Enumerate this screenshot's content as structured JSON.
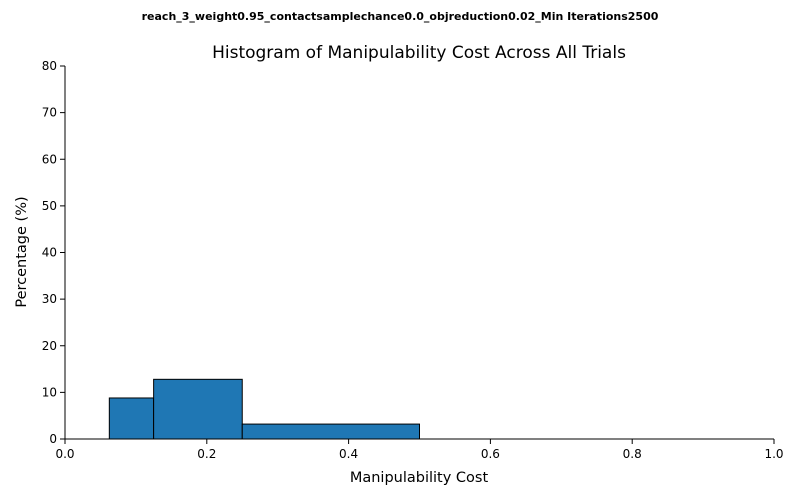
{
  "chart_data": {
    "type": "bar",
    "suptitle": "reach_3_weight0.95_contactsamplechance0.0_objreduction0.02_Min Iterations2500",
    "title": "Histogram of Manipulability Cost Across All Trials",
    "xlabel": "Manipulability Cost",
    "ylabel": "Percentage (%)",
    "xlim": [
      0.0,
      1.0
    ],
    "ylim": [
      0,
      80
    ],
    "xticks": [
      "0.0",
      "0.2",
      "0.4",
      "0.6",
      "0.8",
      "1.0"
    ],
    "yticks": [
      "0",
      "10",
      "20",
      "30",
      "40",
      "50",
      "60",
      "70",
      "80"
    ],
    "bins": [
      {
        "x0": 0.0625,
        "x1": 0.125,
        "value": 8.8
      },
      {
        "x0": 0.125,
        "x1": 0.25,
        "value": 12.8
      },
      {
        "x0": 0.25,
        "x1": 0.5,
        "value": 3.2
      }
    ],
    "bar_color": "#1f77b4",
    "edge_color": "#000000",
    "grid": false,
    "legend": false
  }
}
